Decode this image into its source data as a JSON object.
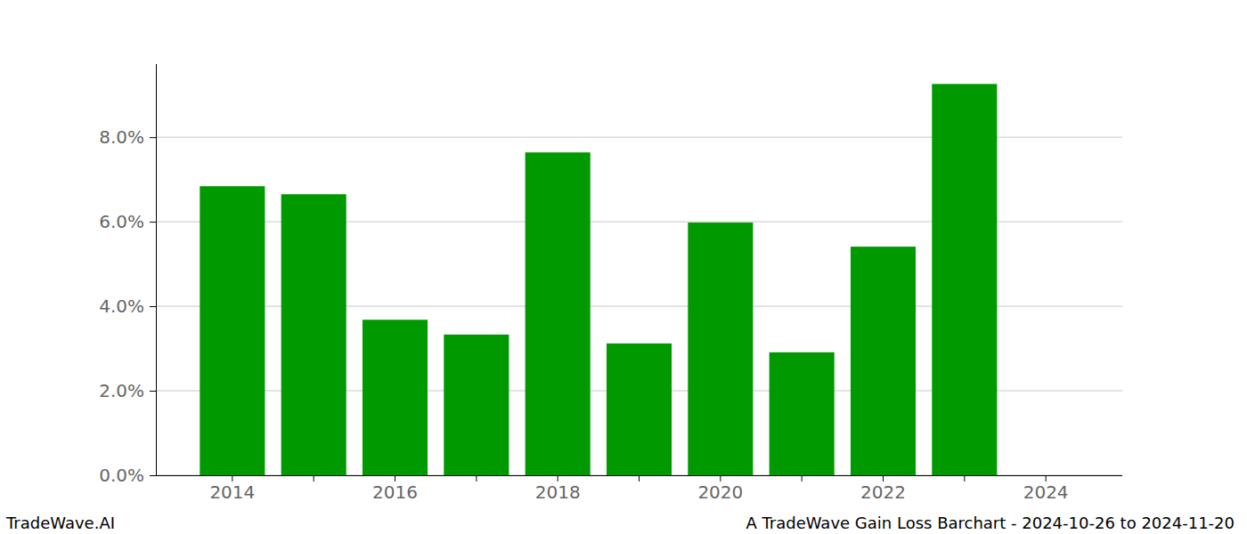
{
  "chart_data": {
    "type": "bar",
    "categories": [
      "2014",
      null,
      "2016",
      null,
      "2018",
      null,
      "2020",
      null,
      "2022",
      null,
      "2024"
    ],
    "values": [
      6.84,
      6.65,
      3.68,
      3.33,
      7.64,
      3.12,
      5.98,
      2.91,
      5.41,
      9.26,
      0
    ],
    "color": "#009900",
    "ylim": [
      0,
      9.73
    ],
    "yticks": [
      {
        "value": 0,
        "label": "0.0%"
      },
      {
        "value": 2,
        "label": "2.0%"
      },
      {
        "value": 4,
        "label": "4.0%"
      },
      {
        "value": 6,
        "label": "6.0%"
      },
      {
        "value": 8,
        "label": "8.0%"
      }
    ],
    "grid": true,
    "annotations": [
      "TradeWave.AI",
      "A TradeWave Gain Loss Barchart - 2024-10-26 to 2024-11-20"
    ]
  }
}
